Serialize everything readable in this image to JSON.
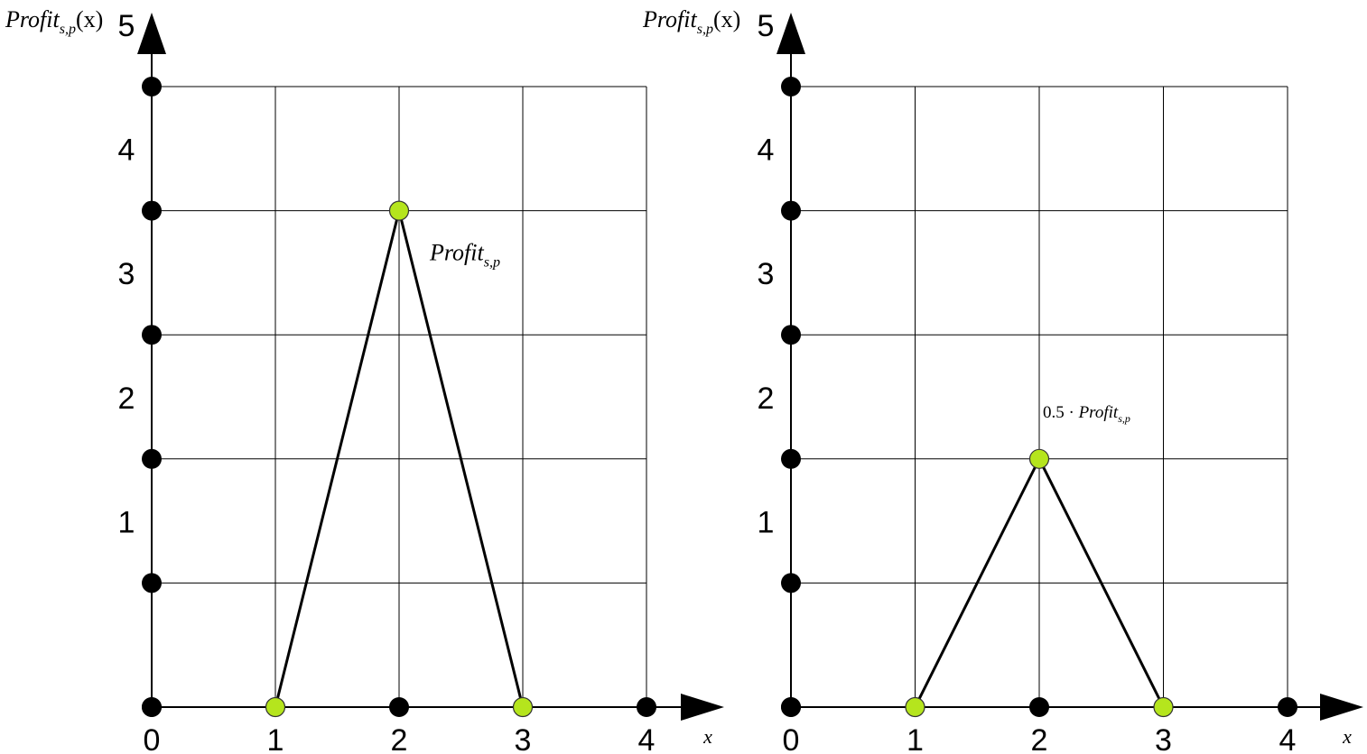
{
  "chart_data": [
    {
      "type": "line",
      "title": "",
      "ylabel": "Profit_{s,p}(x)",
      "xlabel": "x",
      "xlim": [
        0,
        4
      ],
      "ylim": [
        0,
        5
      ],
      "x_ticks": [
        "0",
        "1",
        "2",
        "3",
        "4"
      ],
      "y_ticks": [
        "1",
        "2",
        "3",
        "4",
        "5"
      ],
      "grid": true,
      "series": [
        {
          "x": [
            1,
            2,
            3
          ],
          "y": [
            0,
            4,
            0
          ]
        }
      ],
      "annotation": {
        "prefix": "",
        "text": "Profit",
        "sub": "s,p",
        "x": 2,
        "y": 4
      },
      "axis_markers_x": [
        0,
        2,
        4
      ],
      "axis_markers_y": [
        0,
        1,
        2,
        3,
        4,
        5
      ],
      "highlight_color": "#b5e51d",
      "marker_color": "#000000"
    },
    {
      "type": "line",
      "title": "",
      "ylabel": "Profit_{s,p}(x)",
      "xlabel": "x",
      "xlim": [
        0,
        4
      ],
      "ylim": [
        0,
        5
      ],
      "x_ticks": [
        "0",
        "1",
        "2",
        "3",
        "4"
      ],
      "y_ticks": [
        "1",
        "2",
        "3",
        "4",
        "5"
      ],
      "grid": true,
      "series": [
        {
          "x": [
            1,
            2,
            3
          ],
          "y": [
            0,
            2,
            0
          ]
        }
      ],
      "annotation": {
        "prefix": "0.5 · ",
        "text": "Profit",
        "sub": "s,p",
        "x": 2,
        "y": 2
      },
      "axis_markers_x": [
        0,
        2,
        4
      ],
      "axis_markers_y": [
        0,
        1,
        2,
        3,
        4,
        5
      ],
      "highlight_color": "#b5e51d",
      "marker_color": "#000000"
    }
  ]
}
